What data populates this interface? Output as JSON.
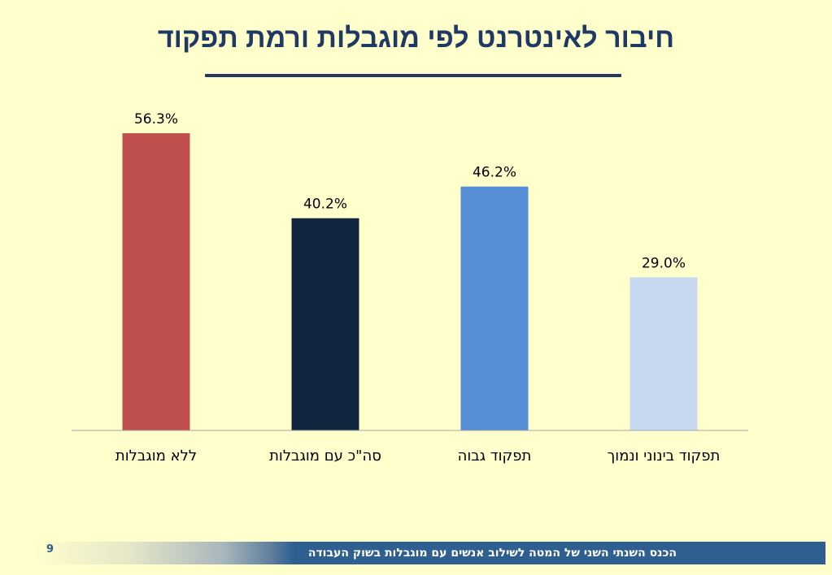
{
  "slide": {
    "title": "חיבור לאינטרנט לפי מוגבלות ורמת תפקוד",
    "footer_text": "הכנס השנתי השני של המטה לשילוב אנשים עם מוגבלות בשוק העבודה",
    "page_number": "9"
  },
  "chart_data": {
    "type": "bar",
    "categories": [
      "ללא מוגבלות",
      "סה\"כ עם מוגבלות",
      "תפקוד גבוה",
      "תפקוד בינוני ונמוך"
    ],
    "values": [
      56.3,
      40.2,
      46.2,
      29.0
    ],
    "value_labels": [
      "56.3%",
      "40.2%",
      "46.2%",
      "29.0%"
    ],
    "colors": [
      "#c0504d",
      "#12263f",
      "#558ed5",
      "#c6d9f1"
    ],
    "ylim": [
      0,
      60
    ],
    "grid": false,
    "legend": "none",
    "axis_color": "#a6a6a6"
  }
}
